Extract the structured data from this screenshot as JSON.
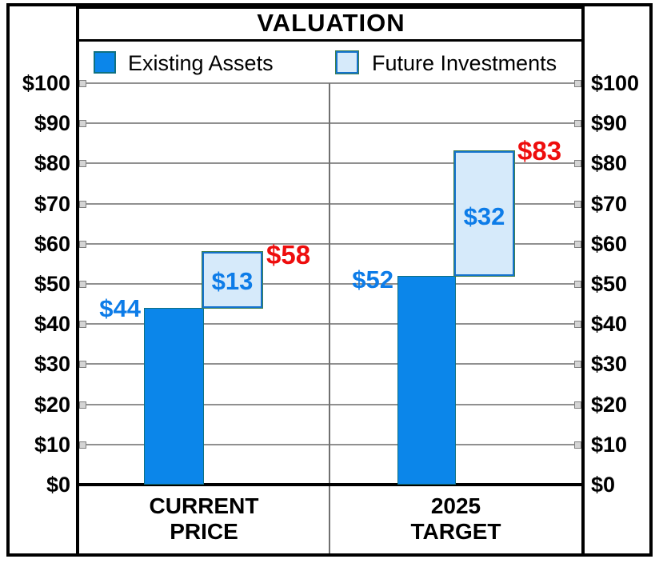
{
  "title": "VALUATION",
  "legend": {
    "items": [
      {
        "label": "Existing Assets"
      },
      {
        "label": "Future Investments"
      }
    ]
  },
  "axis": {
    "tick_labels": [
      "$100",
      "$90",
      "$80",
      "$70",
      "$60",
      "$50",
      "$40",
      "$30",
      "$20",
      "$10",
      "$0"
    ],
    "tick_values": [
      100,
      90,
      80,
      70,
      60,
      50,
      40,
      30,
      20,
      10,
      0
    ]
  },
  "categories": [
    {
      "lines": [
        "CURRENT",
        "PRICE"
      ]
    },
    {
      "lines": [
        "2025",
        "TARGET"
      ]
    }
  ],
  "value_labels": {
    "current_existing": "$44",
    "current_future": "$13",
    "current_total": "$58",
    "target_existing": "$52",
    "target_future": "$32",
    "target_total": "$83"
  },
  "colors": {
    "existing_fill": "#0b86ea",
    "existing_border": "#0f7080",
    "future_fill": "#d6eafa",
    "future_border": "#1473cc",
    "value_label_blue": "#0d7ce8",
    "total_label_red": "#ee0d0d",
    "gridline_gray": "#909090",
    "divider_gray": "#707070"
  },
  "chart_data": {
    "type": "bar",
    "subtype": "stacked-offset",
    "title": "VALUATION",
    "categories": [
      "CURRENT PRICE",
      "2025 TARGET"
    ],
    "series": [
      {
        "name": "Existing Assets",
        "values": [
          44,
          52
        ],
        "color": "#0b86ea"
      },
      {
        "name": "Future Investments",
        "values": [
          13,
          32
        ],
        "color": "#d6eafa"
      }
    ],
    "totals": [
      58,
      83
    ],
    "ylabel": "",
    "ylim": [
      0,
      100
    ],
    "ytick_step": 10,
    "ytick_format": "$",
    "grid": true,
    "dual_y_axis": true,
    "legend_position": "top"
  }
}
